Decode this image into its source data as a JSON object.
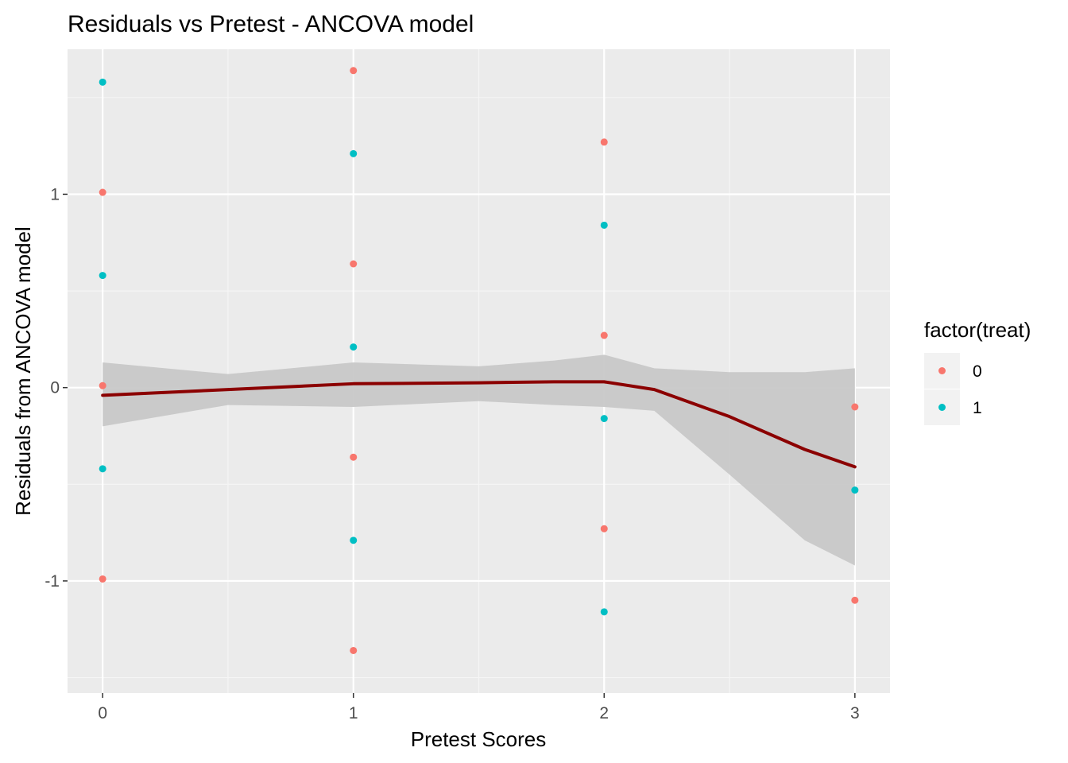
{
  "chart_data": {
    "type": "scatter",
    "title": "Residuals vs Pretest - ANCOVA model",
    "xlabel": "Pretest Scores",
    "ylabel": "Residuals from ANCOVA model",
    "xlim": [
      -0.14,
      3.14
    ],
    "ylim": [
      -1.58,
      1.75
    ],
    "x_ticks": [
      0,
      1,
      2,
      3
    ],
    "x_tick_labels": [
      "0",
      "1",
      "2",
      "3"
    ],
    "y_ticks": [
      -1,
      0,
      1
    ],
    "y_tick_labels": [
      "-1",
      "0",
      "1"
    ],
    "x_minor_ticks": [
      0.5,
      1.5,
      2.5
    ],
    "y_minor_ticks": [
      -1.5,
      -0.5,
      0.5,
      1.5
    ],
    "grid": true,
    "legend": {
      "title": "factor(treat)",
      "placement": "right",
      "entries": [
        {
          "label": "0",
          "color": "#F8766D"
        },
        {
          "label": "1",
          "color": "#00BFC4"
        }
      ]
    },
    "series": [
      {
        "name": "0",
        "color": "#F8766D",
        "x": [
          0,
          0,
          0,
          1,
          1,
          1,
          1,
          2,
          2,
          2,
          3,
          3
        ],
        "y": [
          1.01,
          0.01,
          -0.99,
          1.64,
          0.64,
          -0.36,
          -1.36,
          1.27,
          0.27,
          -0.73,
          -0.1,
          -1.1
        ]
      },
      {
        "name": "1",
        "color": "#00BFC4",
        "x": [
          0,
          0,
          0,
          1,
          1,
          1,
          2,
          2,
          2,
          3
        ],
        "y": [
          1.58,
          0.58,
          -0.42,
          1.21,
          0.21,
          -0.79,
          0.84,
          -0.16,
          -1.16,
          -0.53
        ]
      }
    ],
    "smooth": {
      "color": "#8B0000",
      "band_color": "#C8C8C8",
      "x": [
        0,
        0.5,
        1,
        1.5,
        1.8,
        2,
        2.2,
        2.5,
        2.8,
        3
      ],
      "y": [
        -0.04,
        -0.01,
        0.02,
        0.025,
        0.03,
        0.03,
        -0.01,
        -0.15,
        -0.32,
        -0.41
      ],
      "lower": [
        -0.2,
        -0.09,
        -0.1,
        -0.07,
        -0.09,
        -0.1,
        -0.12,
        -0.45,
        -0.79,
        -0.92
      ],
      "upper": [
        0.13,
        0.07,
        0.13,
        0.11,
        0.14,
        0.17,
        0.1,
        0.08,
        0.08,
        0.1
      ]
    },
    "colors": {
      "panel_background": "#EBEBEB",
      "grid_major": "#FFFFFF",
      "grid_minor": "#F5F5F5",
      "legend_key_background": "#F2F2F2"
    }
  }
}
